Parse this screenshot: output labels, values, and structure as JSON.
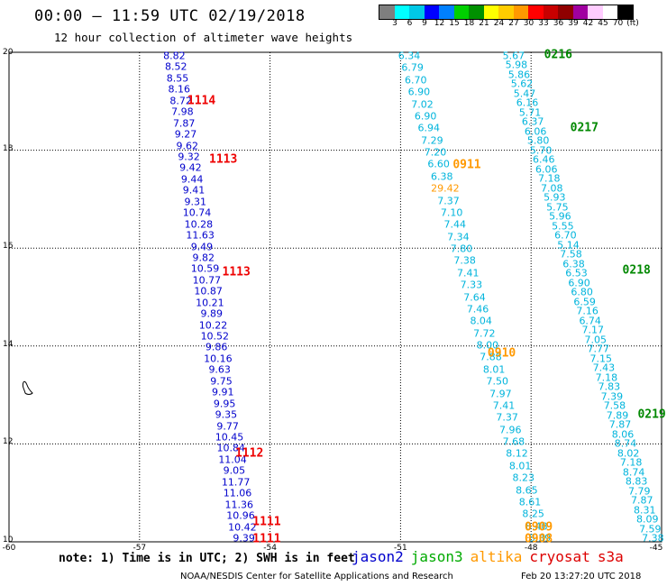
{
  "title": "00:00 – 11:59 UTC 02/19/2018",
  "subtitle": "12 hour collection of altimeter wave heights",
  "colorbar": {
    "colors": [
      "#7f7f7f",
      "#00ffff",
      "#00c8e6",
      "#0000ff",
      "#0080ff",
      "#00d000",
      "#009000",
      "#ffff00",
      "#ffcc00",
      "#ff9900",
      "#ff0000",
      "#c80000",
      "#900000",
      "#a000a0",
      "#ffccff",
      "#ffffff",
      "#000000"
    ],
    "labels": [
      "3",
      "6",
      "9",
      "12",
      "15",
      "18",
      "21",
      "24",
      "27",
      "30",
      "33",
      "36",
      "39",
      "42",
      "45",
      "70",
      "(ft)"
    ]
  },
  "axes": {
    "lat_labels": [
      "20",
      "18",
      "16",
      "14",
      "12",
      "10"
    ],
    "lon_labels": [
      "-60",
      "-57",
      "-54",
      "-51",
      "-48",
      "-45"
    ],
    "lat_range": [
      10,
      20
    ],
    "lon_range": [
      -60,
      -45
    ],
    "grid": true
  },
  "colors": {
    "jason2": "#0000cc",
    "jason3": "#00aa00",
    "altika": "#ff9900",
    "cryosat": "#dd0000",
    "s3a": "#dd0000",
    "cyan_track": "#00b4dc",
    "green_label": "#008800",
    "orange_label": "#ff9900",
    "red_label": "#ee0000"
  },
  "tracks": [
    {
      "color_key": "jason2",
      "lon_start": -56.2,
      "lon_end": -54.6,
      "values": [
        "8.82",
        "8.52",
        "8.55",
        "8.16",
        "8.72",
        "7.98",
        "7.87",
        "9.27",
        "9.62",
        "9.32",
        "9.42",
        "9.44",
        "9.41",
        "9.31",
        "10.74",
        "10.28",
        "11.63",
        "9.49",
        "9.82",
        "10.59",
        "10.77",
        "10.87",
        "10.21",
        "9.89",
        "10.22",
        "10.52",
        "9.86",
        "10.16",
        "9.63",
        "9.75",
        "9.91",
        "9.95",
        "9.35",
        "9.77",
        "10.45",
        "10.84",
        "11.04",
        "9.05",
        "11.77",
        "11.06",
        "11.36",
        "10.96",
        "10.42",
        "9.39"
      ]
    },
    {
      "color_key": "cyan_track",
      "lon_start": -50.8,
      "lon_end": -47.8,
      "values": [
        "6.34",
        "6.79",
        "6.70",
        "6.90",
        "7.02",
        "6.90",
        "6.94",
        "7.29",
        "7.20",
        "6.60",
        "6.38",
        "29.42",
        "7.37",
        "7.10",
        "7.44",
        "7.34",
        "7.80",
        "7.38",
        "7.41",
        "7.33",
        "7.64",
        "7.46",
        "8.04",
        "7.72",
        "8.00",
        "7.88",
        "8.01",
        "7.50",
        "7.97",
        "7.41",
        "7.37",
        "7.96",
        "7.68",
        "8.12",
        "8.01",
        "8.23",
        "8.65",
        "8.61",
        "8.25",
        "8.48",
        "8.39"
      ]
    },
    {
      "color_key": "cyan_track",
      "lon_start": -48.4,
      "lon_end": -45.2,
      "values": [
        "5.67",
        "5.98",
        "5.86",
        "5.62",
        "5.47",
        "6.16",
        "5.71",
        "6.37",
        "6.06",
        "5.80",
        "5.70",
        "6.46",
        "6.06",
        "7.18",
        "7.08",
        "5.93",
        "5.75",
        "5.96",
        "5.55",
        "6.70",
        "5.14",
        "7.58",
        "6.38",
        "6.53",
        "6.90",
        "6.80",
        "6.59",
        "7.16",
        "6.74",
        "7.17",
        "7.05",
        "7.77",
        "7.15",
        "7.43",
        "7.18",
        "7.83",
        "7.39",
        "7.58",
        "7.89",
        "7.87",
        "8.06",
        "8.74",
        "8.02",
        "7.18",
        "8.74",
        "8.83",
        "7.79",
        "7.87",
        "8.31",
        "8.09",
        "7.59",
        "7.38"
      ]
    }
  ],
  "pass_labels": [
    {
      "text": "1114",
      "color_key": "red_label",
      "lat": 19.0,
      "lon": -55.9
    },
    {
      "text": "1113",
      "color_key": "red_label",
      "lat": 17.8,
      "lon": -55.4
    },
    {
      "text": "1113",
      "color_key": "red_label",
      "lat": 15.5,
      "lon": -55.1
    },
    {
      "text": "1112",
      "color_key": "red_label",
      "lat": 11.8,
      "lon": -54.8
    },
    {
      "text": "1111",
      "color_key": "red_label",
      "lat": 10.4,
      "lon": -54.4
    },
    {
      "text": "1111",
      "color_key": "red_label",
      "lat": 10.05,
      "lon": -54.4
    },
    {
      "text": "0911",
      "color_key": "orange_label",
      "lat": 17.7,
      "lon": -49.8
    },
    {
      "text": "0910",
      "color_key": "orange_label",
      "lat": 13.85,
      "lon": -49.0
    },
    {
      "text": "0909",
      "color_key": "orange_label",
      "lat": 10.3,
      "lon": -48.15
    },
    {
      "text": "0908",
      "color_key": "orange_label",
      "lat": 10.05,
      "lon": -48.15
    },
    {
      "text": "0216",
      "color_key": "green_label",
      "lat": 19.95,
      "lon": -47.7
    },
    {
      "text": "0217",
      "color_key": "green_label",
      "lat": 18.45,
      "lon": -47.1
    },
    {
      "text": "0218",
      "color_key": "green_label",
      "lat": 15.55,
      "lon": -45.9
    },
    {
      "text": "0219",
      "color_key": "green_label",
      "lat": 12.6,
      "lon": -45.55
    }
  ],
  "note": "note: 1) Time is in UTC; 2) SWH is in feet",
  "legend": [
    {
      "text": "jason2",
      "color_key": "jason2"
    },
    {
      "text": "jason3",
      "color_key": "jason3"
    },
    {
      "text": "altika",
      "color_key": "altika"
    },
    {
      "text": "cryosat",
      "color_key": "cryosat"
    },
    {
      "text": "s3a",
      "color_key": "s3a"
    }
  ],
  "credit": "NOAA/NESDIS Center for Satellite Applications and Research",
  "generated": "Feb 20 13:27:20 UTC 2018"
}
